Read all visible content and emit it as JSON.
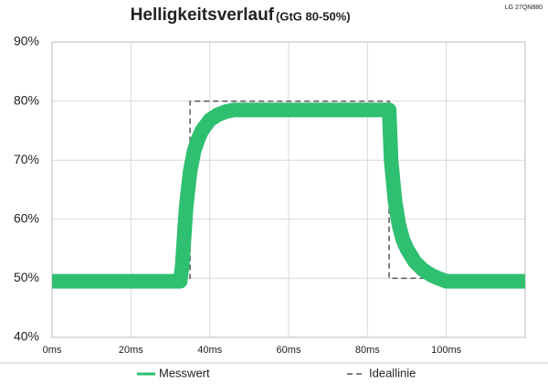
{
  "chart_data": {
    "type": "line",
    "title": "Helligkeitsverlauf",
    "subtitle": "(GtG 80-50%)",
    "annotation": "LG 27QN880",
    "x": [
      0,
      32.5,
      33,
      34,
      35,
      36,
      37,
      38,
      40,
      42,
      44,
      46,
      50,
      60,
      70,
      80,
      85.5,
      86,
      87,
      88,
      89,
      90,
      92,
      94,
      96,
      98,
      100,
      110,
      120
    ],
    "series": [
      {
        "name": "Messwert",
        "color": "#2fbf71",
        "values": [
          49.5,
          49.5,
          52,
          62,
          68,
          71.5,
          73.5,
          75,
          76.8,
          77.7,
          78.2,
          78.5,
          78.5,
          78.5,
          78.5,
          78.5,
          78.5,
          70,
          63,
          59,
          56.5,
          55,
          52.8,
          51.5,
          50.6,
          50,
          49.5,
          49.5,
          49.5
        ]
      },
      {
        "name": "Ideallinie",
        "color": "#555555",
        "dashed": true,
        "x": [
          0,
          35,
          35,
          85.5,
          85.5,
          120
        ],
        "values": [
          50,
          50,
          80,
          80,
          50,
          50
        ]
      }
    ],
    "xlim": [
      0,
      120
    ],
    "xticks": [
      {
        "value": 0,
        "label": "0ms"
      },
      {
        "value": 20,
        "label": "20ms"
      },
      {
        "value": 40,
        "label": "40ms"
      },
      {
        "value": 60,
        "label": "60ms"
      },
      {
        "value": 80,
        "label": "80ms"
      },
      {
        "value": 100,
        "label": "100ms"
      }
    ],
    "ylim": [
      40,
      90
    ],
    "yticks": [
      {
        "value": 40,
        "label": "40%"
      },
      {
        "value": 50,
        "label": "50%"
      },
      {
        "value": 60,
        "label": "60%"
      },
      {
        "value": 70,
        "label": "70%"
      },
      {
        "value": 80,
        "label": "80%"
      },
      {
        "value": 90,
        "label": "90%"
      }
    ],
    "grid": true,
    "legend": "bottom"
  }
}
